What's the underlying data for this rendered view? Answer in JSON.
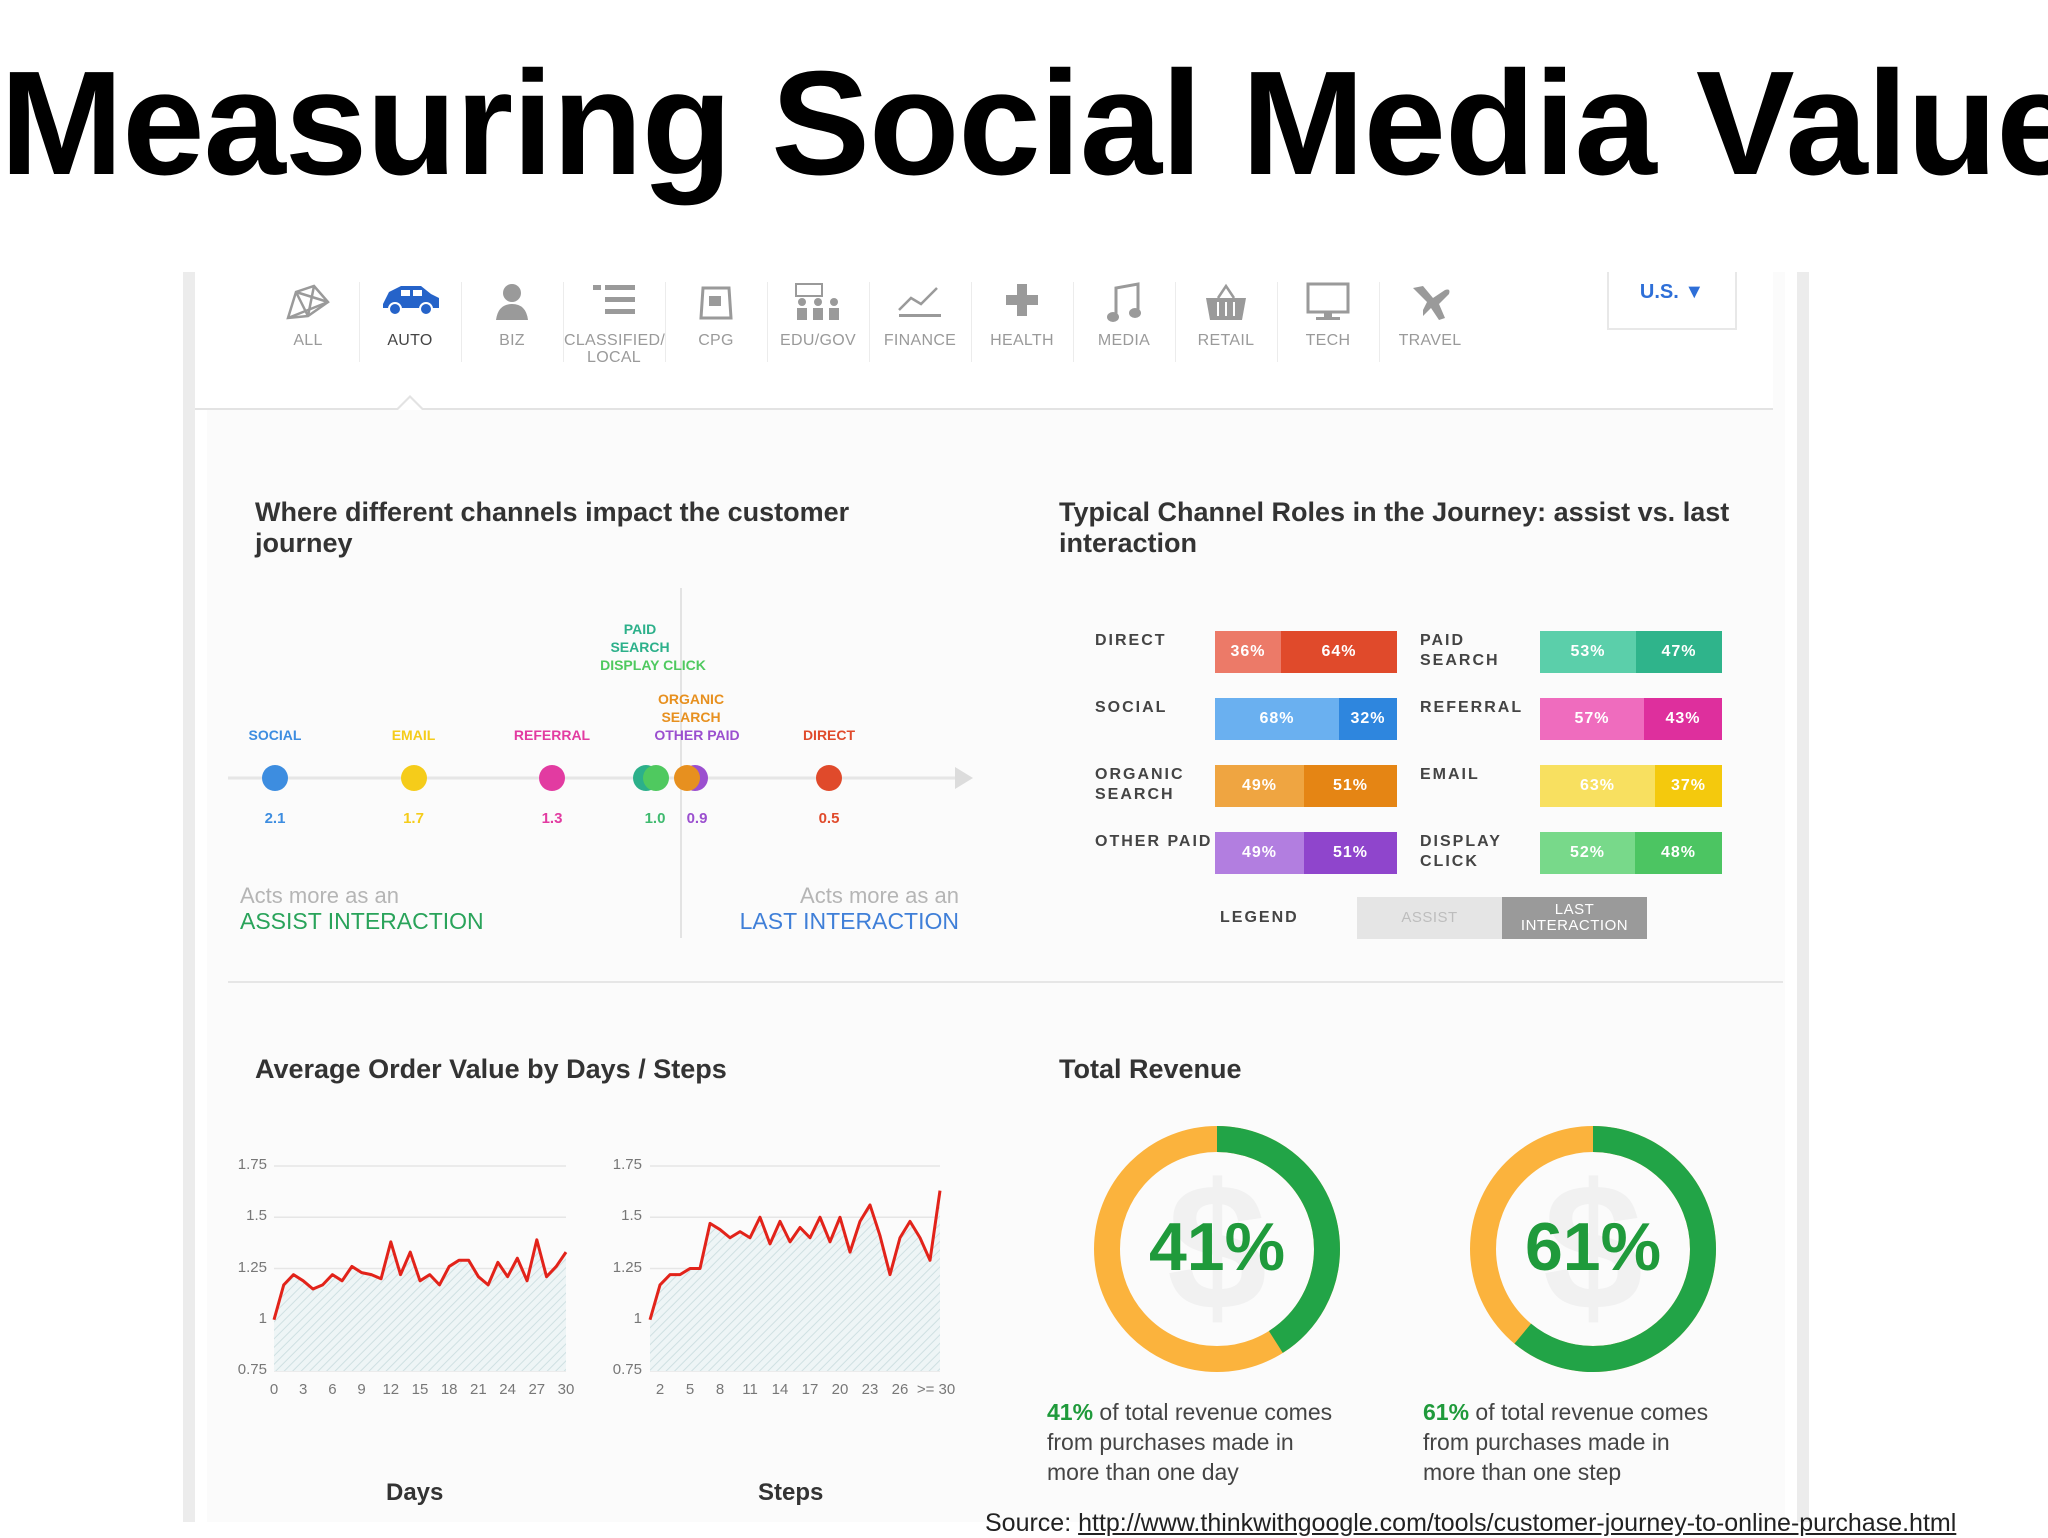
{
  "slide": {
    "title": "Measuring Social Media Value"
  },
  "categories": [
    {
      "label": "ALL",
      "icon": "network-chart-icon"
    },
    {
      "label": "AUTO",
      "icon": "car-icon",
      "active": true
    },
    {
      "label": "BIZ",
      "icon": "person-icon"
    },
    {
      "label": "CLASSIFIED/\nLOCAL",
      "icon": "list-icon"
    },
    {
      "label": "CPG",
      "icon": "package-icon"
    },
    {
      "label": "EDU/GOV",
      "icon": "classroom-icon"
    },
    {
      "label": "FINANCE",
      "icon": "trend-line-icon"
    },
    {
      "label": "HEALTH",
      "icon": "plus-cross-icon"
    },
    {
      "label": "MEDIA",
      "icon": "music-note-icon"
    },
    {
      "label": "RETAIL",
      "icon": "shopping-basket-icon"
    },
    {
      "label": "TECH",
      "icon": "monitor-icon"
    },
    {
      "label": "TRAVEL",
      "icon": "airplane-icon"
    }
  ],
  "country": {
    "label": "U.S. ▼"
  },
  "journey": {
    "title_line1": "Where different channels impact the customer",
    "title_line2": "journey",
    "channels": [
      {
        "name": "SOCIAL",
        "value": 2.1,
        "color": "#3d8de0"
      },
      {
        "name": "EMAIL",
        "value": 1.7,
        "color": "#f5cc1a"
      },
      {
        "name": "REFERRAL",
        "value": 1.3,
        "color": "#e23ba1"
      },
      {
        "name": "PAID SEARCH",
        "value": 1.0,
        "color": "#2cb08a"
      },
      {
        "name": "DISPLAY CLICK",
        "value": 1.0,
        "color": "#4fc95f"
      },
      {
        "name": "ORGANIC SEARCH",
        "value": 0.9,
        "color": "#e7901f"
      },
      {
        "name": "OTHER PAID",
        "value": 0.9,
        "color": "#9b4fcf"
      },
      {
        "name": "DIRECT",
        "value": 0.5,
        "color": "#e04a2b"
      }
    ],
    "stack_top": [
      "PAID",
      "SEARCH",
      "DISPLAY CLICK"
    ],
    "stack_mid": [
      "ORGANIC",
      "SEARCH",
      "OTHER PAID"
    ],
    "val_left": "1.0",
    "val_right": "0.9",
    "assist_top": "Acts more as an",
    "assist_bottom": "ASSIST INTERACTION",
    "last_top": "Acts more as an",
    "last_bottom": "LAST INTERACTION"
  },
  "roles": {
    "title_line1": "Typical Channel Roles in the Journey: assist vs. last",
    "title_line2": "interaction",
    "left": [
      {
        "label1": "DIRECT",
        "label2": "",
        "assist": "36%",
        "last": "64%",
        "assist_share": 36,
        "c1": "#ec7a68",
        "c2": "#e04a2b"
      },
      {
        "label1": "SOCIAL",
        "label2": "",
        "assist": "68%",
        "last": "32%",
        "assist_share": 68,
        "c1": "#6ab0f0",
        "c2": "#2e86de"
      },
      {
        "label1": "ORGANIC",
        "label2": "SEARCH",
        "assist": "49%",
        "last": "51%",
        "assist_share": 49,
        "c1": "#efa541",
        "c2": "#e58514"
      },
      {
        "label1": "OTHER PAID",
        "label2": "",
        "assist": "49%",
        "last": "51%",
        "assist_share": 49,
        "c1": "#b27ee0",
        "c2": "#8f45cc"
      }
    ],
    "right": [
      {
        "label1": "PAID",
        "label2": "SEARCH",
        "assist": "53%",
        "last": "47%",
        "assist_share": 53,
        "c1": "#5bcfaa",
        "c2": "#2fb48b"
      },
      {
        "label1": "REFERRAL",
        "label2": "",
        "assist": "57%",
        "last": "43%",
        "assist_share": 57,
        "c1": "#ef6cbe",
        "c2": "#de2f9d"
      },
      {
        "label1": "EMAIL",
        "label2": "",
        "assist": "63%",
        "last": "37%",
        "assist_share": 63,
        "c1": "#f8e060",
        "c2": "#f4c90d"
      },
      {
        "label1": "DISPLAY",
        "label2": "CLICK",
        "assist": "52%",
        "last": "48%",
        "assist_share": 52,
        "c1": "#78d98a",
        "c2": "#4cc562"
      }
    ],
    "legend_label": "LEGEND",
    "legend_assist": "ASSIST",
    "legend_last_1": "LAST",
    "legend_last_2": "INTERACTION"
  },
  "aov": {
    "title": "Average Order Value by Days / Steps",
    "days_label": "Days",
    "steps_label": "Steps"
  },
  "revenue": {
    "title": "Total Revenue",
    "days_pct": "41%",
    "days_text_1": " of total revenue comes",
    "days_text_2": "from purchases made in",
    "days_text_3": "more than one day",
    "steps_pct": "61%",
    "steps_text_1": " of total revenue comes",
    "steps_text_2": "from purchases made in",
    "steps_text_3": "more than one step"
  },
  "source": {
    "prefix": "Source: ",
    "url": "http://www.thinkwithgoogle.com/tools/customer-journey-to-online-purchase.html"
  },
  "chart_data": [
    {
      "type": "scatter",
      "title": "Where different channels impact the customer journey",
      "xlabel": "",
      "ylabel": "",
      "categories": [
        "SOCIAL",
        "EMAIL",
        "REFERRAL",
        "PAID SEARCH",
        "DISPLAY CLICK",
        "ORGANIC SEARCH",
        "OTHER PAID",
        "DIRECT"
      ],
      "values": [
        2.1,
        1.7,
        1.3,
        1.0,
        1.0,
        0.9,
        0.9,
        0.5
      ],
      "xlim": [
        2.4,
        0.0
      ],
      "annotations": [
        "Acts more as an ASSIST INTERACTION",
        "Acts more as an LAST INTERACTION"
      ]
    },
    {
      "type": "bar",
      "title": "Typical Channel Roles in the Journey: assist vs. last interaction",
      "categories": [
        "DIRECT",
        "SOCIAL",
        "ORGANIC SEARCH",
        "OTHER PAID",
        "PAID SEARCH",
        "REFERRAL",
        "EMAIL",
        "DISPLAY CLICK"
      ],
      "series": [
        {
          "name": "ASSIST",
          "values": [
            36,
            68,
            49,
            49,
            53,
            57,
            63,
            52
          ]
        },
        {
          "name": "LAST INTERACTION",
          "values": [
            64,
            32,
            51,
            51,
            47,
            43,
            37,
            48
          ]
        }
      ],
      "stacked": true
    },
    {
      "type": "area",
      "title": "Average Order Value by Days / Steps",
      "xlabel": "Days",
      "ylabel": "",
      "ylim": [
        0.75,
        1.75
      ],
      "yticks": [
        "1.75",
        "1.5",
        "1.25",
        "1",
        "0.75"
      ],
      "xticks": [
        "0",
        "3",
        "6",
        "9",
        "12",
        "15",
        "18",
        "21",
        "24",
        "27",
        "30"
      ],
      "x": [
        0,
        1,
        2,
        3,
        4,
        5,
        6,
        7,
        8,
        9,
        10,
        11,
        12,
        13,
        14,
        15,
        16,
        17,
        18,
        19,
        20,
        21,
        22,
        23,
        24,
        25,
        26,
        27,
        28,
        29,
        30
      ],
      "values": [
        1.0,
        1.17,
        1.22,
        1.19,
        1.15,
        1.17,
        1.22,
        1.19,
        1.26,
        1.23,
        1.22,
        1.2,
        1.38,
        1.22,
        1.33,
        1.19,
        1.22,
        1.17,
        1.26,
        1.29,
        1.29,
        1.21,
        1.17,
        1.28,
        1.21,
        1.3,
        1.19,
        1.39,
        1.21,
        1.26,
        1.33
      ]
    },
    {
      "type": "area",
      "xlabel": "Steps",
      "ylabel": "",
      "ylim": [
        0.75,
        1.75
      ],
      "yticks": [
        "1.75",
        "1.5",
        "1.25",
        "1",
        "0.75"
      ],
      "xticks": [
        "2",
        "5",
        "8",
        "11",
        "14",
        "17",
        "20",
        "23",
        "26",
        ">= 30"
      ],
      "x": [
        1,
        2,
        3,
        4,
        5,
        6,
        7,
        8,
        9,
        10,
        11,
        12,
        13,
        14,
        15,
        16,
        17,
        18,
        19,
        20,
        21,
        22,
        23,
        24,
        25,
        26,
        27,
        28,
        29,
        30
      ],
      "values": [
        1.0,
        1.17,
        1.22,
        1.22,
        1.25,
        1.25,
        1.47,
        1.44,
        1.4,
        1.43,
        1.4,
        1.5,
        1.37,
        1.48,
        1.38,
        1.45,
        1.4,
        1.5,
        1.38,
        1.5,
        1.33,
        1.48,
        1.56,
        1.41,
        1.22,
        1.4,
        1.48,
        1.4,
        1.29,
        1.63
      ]
    },
    {
      "type": "pie",
      "title": "Total Revenue",
      "categories": [
        "more than one day",
        "one day"
      ],
      "values": [
        41,
        59
      ]
    },
    {
      "type": "pie",
      "categories": [
        "more than one step",
        "one step"
      ],
      "values": [
        61,
        39
      ]
    }
  ]
}
